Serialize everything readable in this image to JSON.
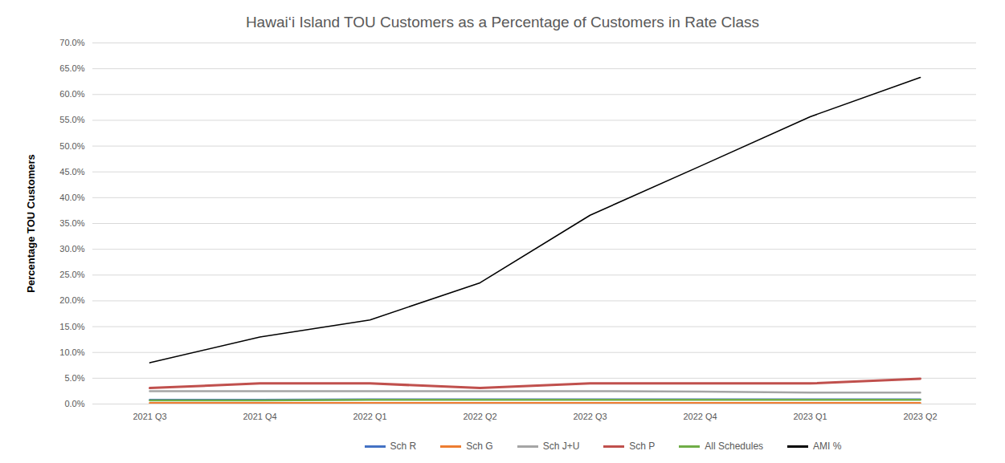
{
  "chart_data": {
    "type": "line",
    "title": "Hawaiʻi Island TOU Customers as a Percentage of Customers in Rate Class",
    "y_label": "Percentage TOU Customers",
    "categories": [
      "2021 Q3",
      "2021 Q4",
      "2022 Q1",
      "2022 Q2",
      "2022 Q3",
      "2022 Q4",
      "2023 Q1",
      "2023 Q2"
    ],
    "series": [
      {
        "name": "Sch R",
        "color": "#4472c4",
        "values": [
          0.8,
          0.8,
          0.9,
          0.9,
          0.9,
          0.9,
          0.9,
          0.9
        ]
      },
      {
        "name": "Sch G",
        "color": "#ed7d31",
        "values": [
          0.2,
          0.2,
          0.2,
          0.2,
          0.2,
          0.2,
          0.2,
          0.2
        ]
      },
      {
        "name": "Sch J+U",
        "color": "#a5a5a5",
        "values": [
          2.5,
          2.5,
          2.5,
          2.5,
          2.5,
          2.4,
          2.2,
          2.2
        ]
      },
      {
        "name": "Sch P",
        "color": "#c0504d",
        "values": [
          3.1,
          4.0,
          4.0,
          3.1,
          4.0,
          4.0,
          4.0,
          4.9
        ]
      },
      {
        "name": "All Schedules",
        "color": "#70ad47",
        "values": [
          0.7,
          0.7,
          0.8,
          0.8,
          0.8,
          0.8,
          0.8,
          0.8
        ]
      },
      {
        "name": "AMI %",
        "color": "#000000",
        "values": [
          8.0,
          13.0,
          16.3,
          23.5,
          36.6,
          46.1,
          55.7,
          63.3
        ]
      }
    ],
    "ylim": [
      0,
      70
    ],
    "yticks": [
      {
        "value": 0,
        "label": "0.0%"
      },
      {
        "value": 5,
        "label": "5.0%"
      },
      {
        "value": 10,
        "label": "10.0%"
      },
      {
        "value": 15,
        "label": "15.0%"
      },
      {
        "value": 20,
        "label": "20.0%"
      },
      {
        "value": 25,
        "label": "25.0%"
      },
      {
        "value": 30,
        "label": "30.0%"
      },
      {
        "value": 35,
        "label": "35.0%"
      },
      {
        "value": 40,
        "label": "40.0%"
      },
      {
        "value": 45,
        "label": "45.0%"
      },
      {
        "value": 50,
        "label": "50.0%"
      },
      {
        "value": 55,
        "label": "55.0%"
      },
      {
        "value": 60,
        "label": "60.0%"
      },
      {
        "value": 65,
        "label": "65.0%"
      },
      {
        "value": 70,
        "label": "70.0%"
      }
    ],
    "grid": true,
    "legend": "bottom"
  }
}
